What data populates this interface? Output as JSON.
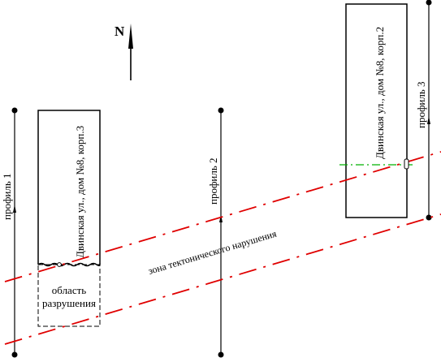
{
  "north": {
    "label": "N"
  },
  "buildings": [
    {
      "label": "Двинская ул., дом №8, корп.3"
    },
    {
      "label": "Двинская ул., дом №8, корп.2"
    }
  ],
  "destruction_area": {
    "line1": "область",
    "line2": "разрушения"
  },
  "profiles": [
    {
      "label": "профиль 1"
    },
    {
      "label": "профиль 2"
    },
    {
      "label": "профиль 3"
    }
  ],
  "fault_zone": {
    "label": "зона тектонического нарушения"
  },
  "colors": {
    "line": "#000000",
    "fault": "#e00000",
    "axis": "#00b000"
  }
}
